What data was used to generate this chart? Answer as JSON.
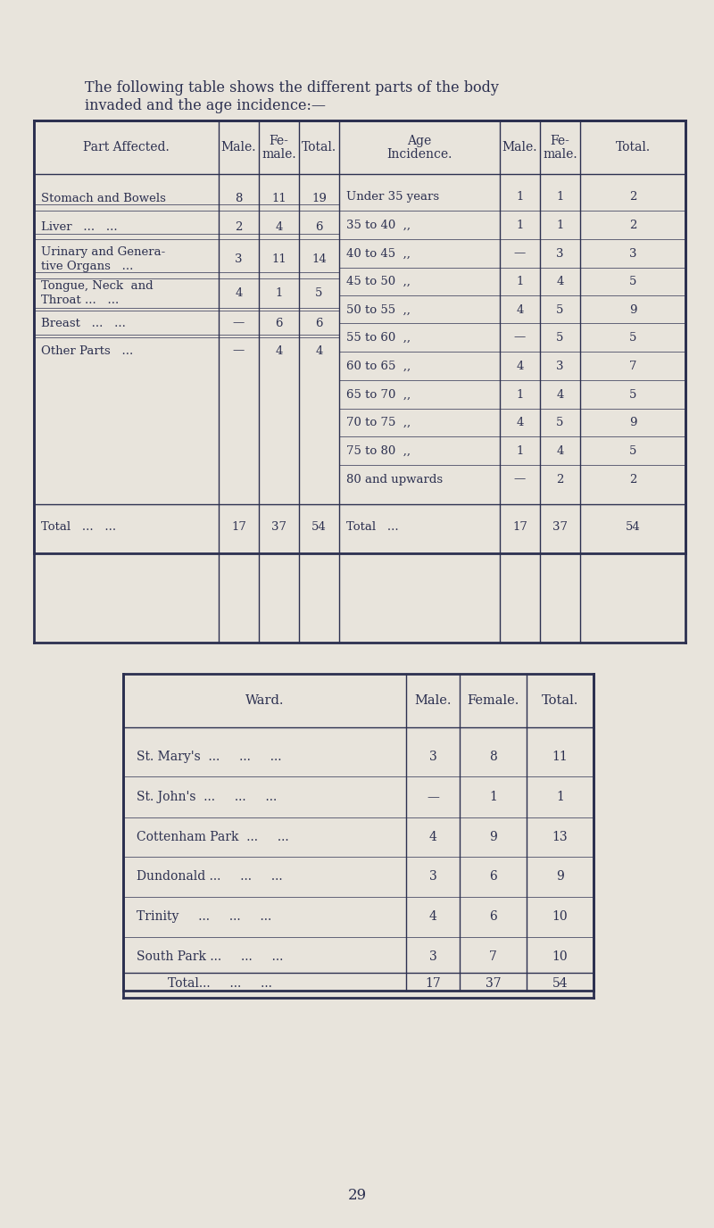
{
  "bg_color": "#e8e4dc",
  "text_color": "#2c3050",
  "intro_text": "The following table shows the different parts of the body\ninvaded and the age incidence:—",
  "table1": {
    "left_headers": [
      "Part Affected.",
      "Male.",
      "Fe-\nmale.",
      "Total."
    ],
    "right_headers": [
      "Age\nIncidence.",
      "Male.",
      "Fe-\nmale.",
      "Total."
    ],
    "left_rows": [
      [
        "Stomach and Bowels",
        "8",
        "11",
        "19"
      ],
      [
        "Liver   ...   ...",
        "2",
        "4",
        "6"
      ],
      [
        "Urinary and Genera-\ntive Organs   ...",
        "3",
        "11",
        "14"
      ],
      [
        "Tongue, Neck  and\nThroat ...   ...",
        "4",
        "1",
        "5"
      ],
      [
        "Breast   ...   ...",
        "—",
        "6",
        "6"
      ],
      [
        "Other Parts   ...",
        "—",
        "4",
        "4"
      ]
    ],
    "right_rows": [
      [
        "Under 35 years",
        "1",
        "1",
        "2"
      ],
      [
        "35 to 40  ,,",
        "1",
        "1",
        "2"
      ],
      [
        "40 to 45  ,,",
        "—",
        "3",
        "3"
      ],
      [
        "45 to 50  ,,",
        "1",
        "4",
        "5"
      ],
      [
        "50 to 55  ,,",
        "4",
        "5",
        "9"
      ],
      [
        "55 to 60  ,,",
        "—",
        "5",
        "5"
      ],
      [
        "60 to 65  ,,",
        "4",
        "3",
        "7"
      ],
      [
        "65 to 70  ,,",
        "1",
        "4",
        "5"
      ],
      [
        "70 to 75  ,,",
        "4",
        "5",
        "9"
      ],
      [
        "75 to 80  ,,",
        "1",
        "4",
        "5"
      ],
      [
        "80 and upwards",
        "—",
        "2",
        "2"
      ]
    ],
    "left_total": [
      "Total   ...   ...",
      "17",
      "37",
      "54"
    ],
    "right_total": [
      "Total   ...",
      "17",
      "37",
      "54"
    ]
  },
  "table2": {
    "headers": [
      "Ward.",
      "Male.",
      "Female.",
      "Total."
    ],
    "rows": [
      [
        "St. Mary's  ...     ...     ...",
        "3",
        "8",
        "11"
      ],
      [
        "St. John's  ...     ...     ...",
        "—",
        "1",
        "1"
      ],
      [
        "Cottenham Park  ...     ...",
        "4",
        "9",
        "13"
      ],
      [
        "Dundonald ...     ...     ...",
        "3",
        "6",
        "9"
      ],
      [
        "Trinity     ...     ...     ...",
        "4",
        "6",
        "10"
      ],
      [
        "South Park ...     ...     ...",
        "3",
        "7",
        "10"
      ]
    ],
    "total": [
      "Total...     ...     ...",
      "17",
      "37",
      "54"
    ]
  },
  "page_number": "29"
}
